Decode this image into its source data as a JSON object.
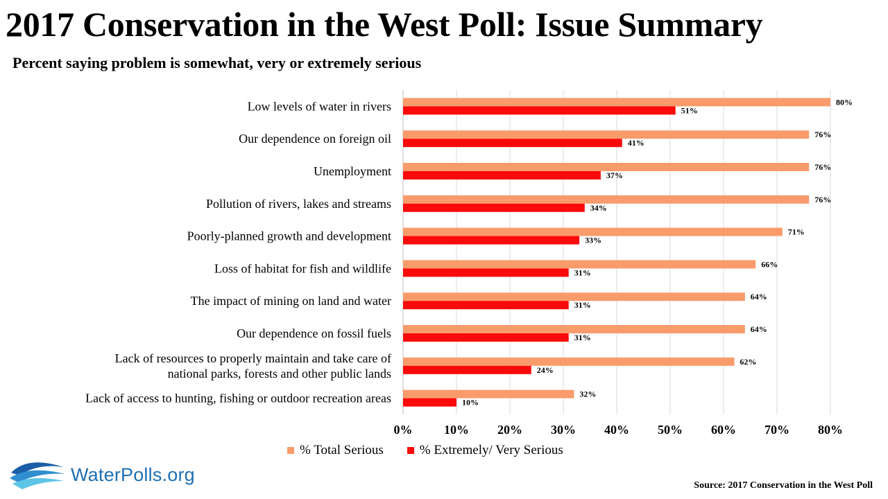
{
  "title": "2017 Conservation in the West Poll: Issue Summary",
  "subtitle": "Percent saying problem is somewhat, very or extremely serious",
  "source": "Source: 2017 Conservation in the West Poll",
  "logo_text": "WaterPolls.org",
  "chart_data": {
    "type": "bar",
    "orientation": "horizontal",
    "categories": [
      [
        "Low levels of water in rivers"
      ],
      [
        "Our dependence on foreign oil"
      ],
      [
        "Unemployment"
      ],
      [
        "Pollution of rivers, lakes and streams"
      ],
      [
        "Poorly-planned growth and development"
      ],
      [
        "Loss of habitat for fish and wildlife"
      ],
      [
        "The impact of mining on land and water"
      ],
      [
        "Our dependence on fossil fuels"
      ],
      [
        "Lack of resources to properly maintain and take care of",
        "national parks, forests and other public lands"
      ],
      [
        "Lack of access to hunting, fishing or outdoor recreation areas"
      ]
    ],
    "series": [
      {
        "name": "% Total Serious",
        "color": "#fa9b6b",
        "values": [
          80,
          76,
          76,
          76,
          71,
          66,
          64,
          64,
          62,
          32
        ],
        "labels": [
          "80%",
          "76%",
          "76%",
          "76%",
          "71%",
          "66%",
          "64%",
          "64%",
          "62%",
          "32%"
        ]
      },
      {
        "name": "% Extremely/ Very Serious",
        "color": "#fa0a0a",
        "values": [
          51,
          41,
          37,
          34,
          33,
          31,
          31,
          31,
          24,
          10
        ],
        "labels": [
          "51%",
          "41%",
          "37%",
          "34%",
          "33%",
          "31%",
          "31%",
          "31%",
          "24%",
          "10%"
        ]
      }
    ],
    "xlim": [
      0,
      80
    ],
    "xticks": [
      0,
      10,
      20,
      30,
      40,
      50,
      60,
      70,
      80
    ],
    "xtick_labels": [
      "0%",
      "10%",
      "20%",
      "30%",
      "40%",
      "50%",
      "60%",
      "70%",
      "80%"
    ],
    "grid": true,
    "legend": "bottom"
  }
}
